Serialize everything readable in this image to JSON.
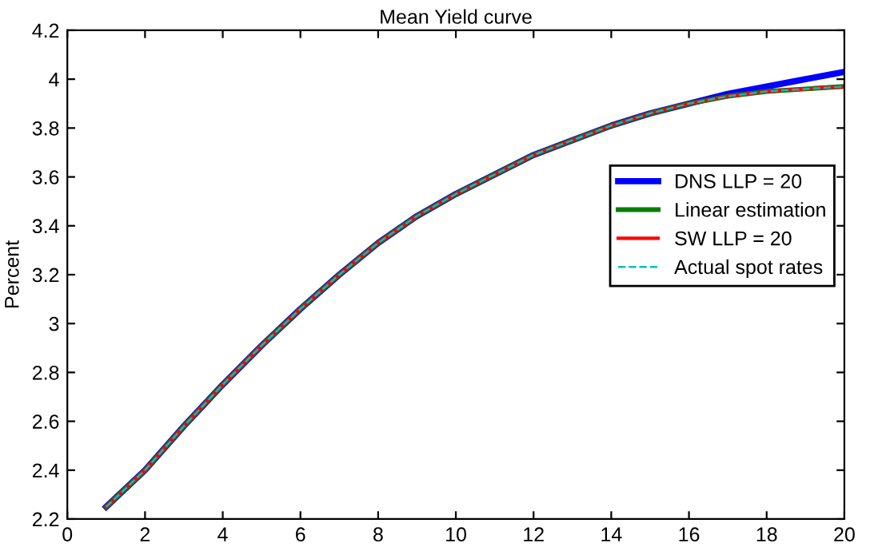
{
  "chart_data": {
    "type": "line",
    "title": "Mean Yield curve",
    "ylabel": "Percent",
    "x": [
      1,
      2,
      3,
      4,
      5,
      6,
      7,
      8,
      9,
      10,
      11,
      12,
      13,
      14,
      15,
      16,
      17,
      18,
      19,
      20
    ],
    "series": [
      {
        "name": "DNS LLP = 20",
        "color": "#0000ff",
        "line_style": "solid",
        "values": [
          2.25,
          2.4,
          2.58,
          2.75,
          2.91,
          3.06,
          3.2,
          3.33,
          3.44,
          3.53,
          3.61,
          3.69,
          3.75,
          3.81,
          3.86,
          3.9,
          3.94,
          3.97,
          4.0,
          4.03
        ]
      },
      {
        "name": "Linear estimation",
        "color": "#008000",
        "line_style": "solid",
        "values": [
          2.25,
          2.4,
          2.58,
          2.75,
          2.91,
          3.06,
          3.2,
          3.33,
          3.44,
          3.53,
          3.61,
          3.69,
          3.75,
          3.81,
          3.86,
          3.9,
          3.93,
          3.95,
          3.96,
          3.97
        ]
      },
      {
        "name": "SW LLP = 20",
        "color": "#ff0000",
        "line_style": "solid",
        "values": [
          2.25,
          2.4,
          2.58,
          2.75,
          2.91,
          3.06,
          3.2,
          3.33,
          3.44,
          3.53,
          3.61,
          3.69,
          3.75,
          3.81,
          3.86,
          3.9,
          3.93,
          3.95,
          3.96,
          3.97
        ]
      },
      {
        "name": "Actual spot rates",
        "color": "#00bfbf",
        "line_style": "dashed",
        "values": [
          2.25,
          2.4,
          2.58,
          2.75,
          2.91,
          3.06,
          3.2,
          3.33,
          3.44,
          3.53,
          3.61,
          3.69,
          3.75,
          3.81,
          3.86,
          3.9,
          3.93,
          3.95,
          3.96,
          3.97
        ]
      }
    ],
    "xlim": [
      0,
      20
    ],
    "xticks": [
      0,
      2,
      4,
      6,
      8,
      10,
      12,
      14,
      16,
      18,
      20
    ],
    "ylim": [
      2.2,
      4.2
    ],
    "yticks": [
      2.2,
      2.4,
      2.6,
      2.8,
      3,
      3.2,
      3.4,
      3.6,
      3.8,
      4,
      4.2
    ],
    "grid": false,
    "legend": "right"
  }
}
